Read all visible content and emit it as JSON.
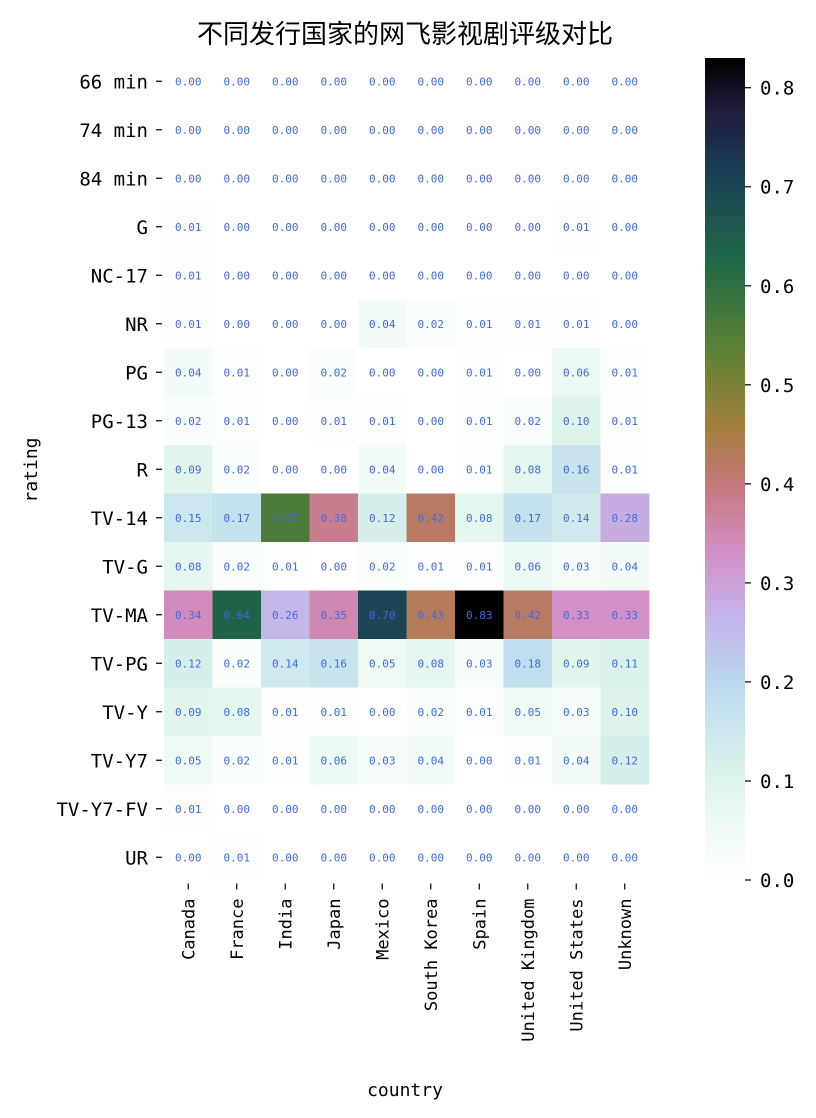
{
  "chart_data": {
    "type": "heatmap",
    "title": "不同发行国家的网飞影视剧评级对比",
    "xlabel": "country",
    "ylabel": "rating",
    "x_categories": [
      "Canada",
      "France",
      "India",
      "Japan",
      "Mexico",
      "South Korea",
      "Spain",
      "United Kingdom",
      "United States",
      "Unknown"
    ],
    "y_categories": [
      "66 min",
      "74 min",
      "84 min",
      "G",
      "NC-17",
      "NR",
      "PG",
      "PG-13",
      "R",
      "TV-14",
      "TV-G",
      "TV-MA",
      "TV-PG",
      "TV-Y",
      "TV-Y7",
      "TV-Y7-FV",
      "UR"
    ],
    "values": [
      [
        0.0,
        0.0,
        0.0,
        0.0,
        0.0,
        0.0,
        0.0,
        0.0,
        0.0,
        0.0
      ],
      [
        0.0,
        0.0,
        0.0,
        0.0,
        0.0,
        0.0,
        0.0,
        0.0,
        0.0,
        0.0
      ],
      [
        0.0,
        0.0,
        0.0,
        0.0,
        0.0,
        0.0,
        0.0,
        0.0,
        0.0,
        0.0
      ],
      [
        0.01,
        0.0,
        0.0,
        0.0,
        0.0,
        0.0,
        0.0,
        0.0,
        0.01,
        0.0
      ],
      [
        0.01,
        0.0,
        0.0,
        0.0,
        0.0,
        0.0,
        0.0,
        0.0,
        0.0,
        0.0
      ],
      [
        0.01,
        0.0,
        0.0,
        0.0,
        0.04,
        0.02,
        0.01,
        0.01,
        0.01,
        0.0
      ],
      [
        0.04,
        0.01,
        0.0,
        0.02,
        0.0,
        0.0,
        0.01,
        0.0,
        0.06,
        0.01
      ],
      [
        0.02,
        0.01,
        0.0,
        0.01,
        0.01,
        0.0,
        0.01,
        0.02,
        0.1,
        0.01
      ],
      [
        0.09,
        0.02,
        0.0,
        0.0,
        0.04,
        0.0,
        0.01,
        0.08,
        0.16,
        0.01
      ],
      [
        0.15,
        0.17,
        0.56,
        0.38,
        0.12,
        0.42,
        0.08,
        0.17,
        0.14,
        0.28
      ],
      [
        0.08,
        0.02,
        0.01,
        0.0,
        0.02,
        0.01,
        0.01,
        0.06,
        0.03,
        0.04
      ],
      [
        0.34,
        0.64,
        0.26,
        0.35,
        0.7,
        0.43,
        0.83,
        0.42,
        0.33,
        0.33
      ],
      [
        0.12,
        0.02,
        0.14,
        0.16,
        0.05,
        0.08,
        0.03,
        0.18,
        0.09,
        0.11
      ],
      [
        0.09,
        0.08,
        0.01,
        0.01,
        0.0,
        0.02,
        0.01,
        0.05,
        0.03,
        0.1
      ],
      [
        0.05,
        0.02,
        0.01,
        0.06,
        0.03,
        0.04,
        0.0,
        0.01,
        0.04,
        0.12
      ],
      [
        0.01,
        0.0,
        0.0,
        0.0,
        0.0,
        0.0,
        0.0,
        0.0,
        0.0,
        0.0
      ],
      [
        0.0,
        0.01,
        0.0,
        0.0,
        0.0,
        0.0,
        0.0,
        0.0,
        0.0,
        0.0
      ]
    ],
    "annotation_format": "0.00",
    "annotation_color": "#4169e1",
    "colormap": "cubehelix_r",
    "colorbar": {
      "range": [
        0,
        0.83
      ],
      "ticks": [
        "0.0",
        "0.1",
        "0.2",
        "0.3",
        "0.4",
        "0.5",
        "0.6",
        "0.7",
        "0.8"
      ]
    },
    "grid": false
  }
}
